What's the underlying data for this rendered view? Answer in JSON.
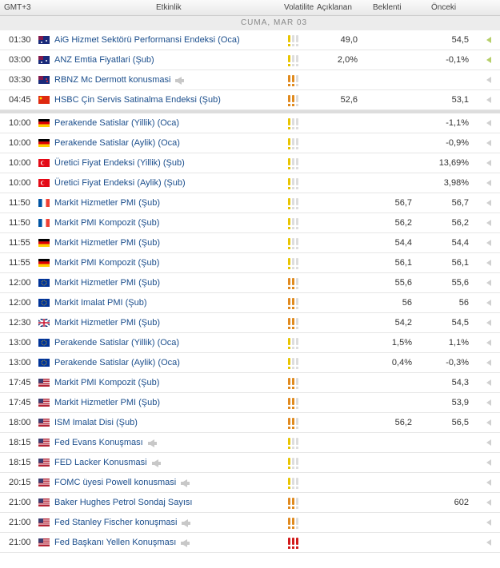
{
  "header": {
    "time": "GMT+3",
    "event": "Etkinlik",
    "volatility": "Volatilite",
    "actual": "Açıklanan",
    "forecast": "Beklenti",
    "previous": "Önceki"
  },
  "section": "CUMA, MAR 03",
  "separator_after": 3,
  "rows": [
    {
      "time": "01:30",
      "flag": "au",
      "event": "AiG Hizmet Sektörü Performansi Endeksi (Oca)",
      "speech": false,
      "volatility": 1,
      "actual": "49,0",
      "forecast": null,
      "previous": "54,5"
    },
    {
      "time": "03:00",
      "flag": "au",
      "event": "ANZ Emtia Fiyatlari (Şub)",
      "speech": false,
      "volatility": 1,
      "actual": "2,0%",
      "forecast": null,
      "previous": "-0,1%"
    },
    {
      "time": "03:30",
      "flag": "nz",
      "event": "RBNZ Mc Dermott konusmasi",
      "speech": true,
      "volatility": 2,
      "actual": null,
      "forecast": null,
      "previous": null
    },
    {
      "time": "04:45",
      "flag": "cn",
      "event": "HSBC Çin Servis Satinalma Endeksi (Şub)",
      "speech": false,
      "volatility": 2,
      "actual": "52,6",
      "forecast": null,
      "previous": "53,1"
    },
    {
      "time": "10:00",
      "flag": "de",
      "event": "Perakende Satislar (Yillik) (Oca)",
      "speech": false,
      "volatility": 1,
      "actual": null,
      "forecast": null,
      "previous": "-1,1%"
    },
    {
      "time": "10:00",
      "flag": "de",
      "event": "Perakende Satislar (Aylik) (Oca)",
      "speech": false,
      "volatility": 1,
      "actual": null,
      "forecast": null,
      "previous": "-0,9%"
    },
    {
      "time": "10:00",
      "flag": "tr",
      "event": "Üretici Fiyat Endeksi (Yillik) (Şub)",
      "speech": false,
      "volatility": 1,
      "actual": null,
      "forecast": null,
      "previous": "13,69%"
    },
    {
      "time": "10:00",
      "flag": "tr",
      "event": "Üretici Fiyat Endeksi (Aylik) (Şub)",
      "speech": false,
      "volatility": 1,
      "actual": null,
      "forecast": null,
      "previous": "3,98%"
    },
    {
      "time": "11:50",
      "flag": "fr",
      "event": "Markit Hizmetler PMI (Şub)",
      "speech": false,
      "volatility": 1,
      "actual": null,
      "forecast": "56,7",
      "previous": "56,7"
    },
    {
      "time": "11:50",
      "flag": "fr",
      "event": "Markit PMI Kompozit (Şub)",
      "speech": false,
      "volatility": 1,
      "actual": null,
      "forecast": "56,2",
      "previous": "56,2"
    },
    {
      "time": "11:55",
      "flag": "de",
      "event": "Markit Hizmetler PMI (Şub)",
      "speech": false,
      "volatility": 1,
      "actual": null,
      "forecast": "54,4",
      "previous": "54,4"
    },
    {
      "time": "11:55",
      "flag": "de",
      "event": "Markit PMI Kompozit (Şub)",
      "speech": false,
      "volatility": 1,
      "actual": null,
      "forecast": "56,1",
      "previous": "56,1"
    },
    {
      "time": "12:00",
      "flag": "eu",
      "event": "Markit Hizmetler PMI (Şub)",
      "speech": false,
      "volatility": 2,
      "actual": null,
      "forecast": "55,6",
      "previous": "55,6"
    },
    {
      "time": "12:00",
      "flag": "eu",
      "event": "Markit Imalat PMI (Şub)",
      "speech": false,
      "volatility": 2,
      "actual": null,
      "forecast": "56",
      "previous": "56"
    },
    {
      "time": "12:30",
      "flag": "gb",
      "event": "Markit Hizmetler PMI (Şub)",
      "speech": false,
      "volatility": 2,
      "actual": null,
      "forecast": "54,2",
      "previous": "54,5"
    },
    {
      "time": "13:00",
      "flag": "eu",
      "event": "Perakende Satislar (Yillik) (Oca)",
      "speech": false,
      "volatility": 1,
      "actual": null,
      "forecast": "1,5%",
      "previous": "1,1%"
    },
    {
      "time": "13:00",
      "flag": "eu",
      "event": "Perakende Satislar (Aylik) (Oca)",
      "speech": false,
      "volatility": 1,
      "actual": null,
      "forecast": "0,4%",
      "previous": "-0,3%"
    },
    {
      "time": "17:45",
      "flag": "us",
      "event": "Markit PMI Kompozit (Şub)",
      "speech": false,
      "volatility": 2,
      "actual": null,
      "forecast": null,
      "previous": "54,3"
    },
    {
      "time": "17:45",
      "flag": "us",
      "event": "Markit Hizmetler PMI (Şub)",
      "speech": false,
      "volatility": 2,
      "actual": null,
      "forecast": null,
      "previous": "53,9"
    },
    {
      "time": "18:00",
      "flag": "us",
      "event": "ISM Imalat Disi (Şub)",
      "speech": false,
      "volatility": 2,
      "actual": null,
      "forecast": "56,2",
      "previous": "56,5"
    },
    {
      "time": "18:15",
      "flag": "us",
      "event": "Fed Evans Konuşması",
      "speech": true,
      "volatility": 1,
      "actual": null,
      "forecast": null,
      "previous": null
    },
    {
      "time": "18:15",
      "flag": "us",
      "event": "FED Lacker Konusmasi",
      "speech": true,
      "volatility": 1,
      "actual": null,
      "forecast": null,
      "previous": null
    },
    {
      "time": "20:15",
      "flag": "us",
      "event": "FOMC üyesi Powell konusmasi",
      "speech": true,
      "volatility": 1,
      "actual": null,
      "forecast": null,
      "previous": null
    },
    {
      "time": "21:00",
      "flag": "us",
      "event": "Baker Hughes Petrol Sondaj Sayısı",
      "speech": false,
      "volatility": 2,
      "actual": null,
      "forecast": null,
      "previous": "602"
    },
    {
      "time": "21:00",
      "flag": "us",
      "event": "Fed Stanley Fischer konuşmasi",
      "speech": true,
      "volatility": 2,
      "actual": null,
      "forecast": null,
      "previous": null
    },
    {
      "time": "21:00",
      "flag": "us",
      "event": "Fed Başkanı Yellen Konuşması",
      "speech": true,
      "volatility": 3,
      "actual": null,
      "forecast": null,
      "previous": null
    }
  ]
}
